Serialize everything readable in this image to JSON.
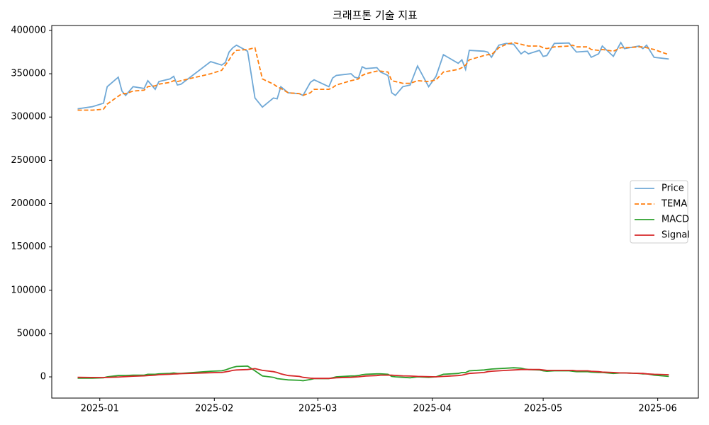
{
  "chart_data": {
    "type": "line",
    "title": "크래프톤 기술 지표",
    "x": [
      "2024-12-26",
      "2024-12-30",
      "2025-01-02",
      "2025-01-03",
      "2025-01-06",
      "2025-01-07",
      "2025-01-08",
      "2025-01-10",
      "2025-01-13",
      "2025-01-14",
      "2025-01-16",
      "2025-01-17",
      "2025-01-20",
      "2025-01-21",
      "2025-01-22",
      "2025-01-23",
      "2025-01-31",
      "2025-02-03",
      "2025-02-04",
      "2025-02-05",
      "2025-02-06",
      "2025-02-07",
      "2025-02-10",
      "2025-02-12",
      "2025-02-14",
      "2025-02-17",
      "2025-02-18",
      "2025-02-19",
      "2025-02-21",
      "2025-02-24",
      "2025-02-25",
      "2025-02-27",
      "2025-02-28",
      "2025-03-04",
      "2025-03-05",
      "2025-03-06",
      "2025-03-10",
      "2025-03-11",
      "2025-03-12",
      "2025-03-13",
      "2025-03-14",
      "2025-03-17",
      "2025-03-18",
      "2025-03-20",
      "2025-03-21",
      "2025-03-22",
      "2025-03-24",
      "2025-03-26",
      "2025-03-28",
      "2025-03-31",
      "2025-04-02",
      "2025-04-04",
      "2025-04-08",
      "2025-04-09",
      "2025-04-10",
      "2025-04-11",
      "2025-04-15",
      "2025-04-16",
      "2025-04-17",
      "2025-04-19",
      "2025-04-21",
      "2025-04-23",
      "2025-04-25",
      "2025-04-26",
      "2025-04-27",
      "2025-04-30",
      "2025-05-01",
      "2025-05-02",
      "2025-05-04",
      "2025-05-08",
      "2025-05-09",
      "2025-05-10",
      "2025-05-13",
      "2025-05-14",
      "2025-05-16",
      "2025-05-17",
      "2025-05-20",
      "2025-05-22",
      "2025-05-23",
      "2025-05-27",
      "2025-05-28",
      "2025-05-29",
      "2025-05-31",
      "2025-06-04"
    ],
    "series": [
      {
        "name": "Price",
        "color": "#6fa8d6",
        "dash": false,
        "values": [
          309500,
          312000,
          316000,
          335000,
          346000,
          330000,
          325000,
          335000,
          333000,
          342000,
          332000,
          341000,
          344000,
          347000,
          337000,
          338000,
          364000,
          360000,
          363000,
          375000,
          380000,
          383000,
          376000,
          322000,
          311500,
          322000,
          321000,
          335000,
          328000,
          327000,
          325000,
          340000,
          343000,
          335000,
          345000,
          348000,
          350000,
          346000,
          345000,
          358000,
          356000,
          357000,
          352000,
          348000,
          328000,
          325000,
          335000,
          337000,
          359000,
          335000,
          347000,
          372000,
          362000,
          366000,
          355000,
          377000,
          376000,
          375000,
          369000,
          383000,
          385000,
          384000,
          373000,
          376000,
          373000,
          377000,
          370000,
          371000,
          385000,
          385500,
          380000,
          375000,
          376000,
          369000,
          373000,
          382000,
          370000,
          386000,
          379000,
          382000,
          379000,
          383000,
          369000,
          367000
        ]
      },
      {
        "name": "TEMA",
        "color": "#ff7f0e",
        "dash": true,
        "values": [
          308000,
          308000,
          309000,
          315000,
          324000,
          327000,
          327000,
          330000,
          331000,
          335000,
          336000,
          338000,
          340000,
          342000,
          341000,
          342000,
          350000,
          354000,
          360000,
          366000,
          373000,
          377000,
          378000,
          380000,
          344000,
          338000,
          335000,
          333000,
          328000,
          327000,
          325000,
          328000,
          332000,
          332000,
          334000,
          337000,
          342000,
          343000,
          344000,
          348000,
          350000,
          353000,
          353000,
          352000,
          342000,
          341000,
          339000,
          339000,
          342000,
          341000,
          343000,
          352000,
          355000,
          357000,
          360000,
          366000,
          371000,
          372000,
          372000,
          380000,
          384000,
          386000,
          384000,
          383000,
          382000,
          382000,
          380000,
          379000,
          381000,
          382000,
          383000,
          381000,
          381000,
          378000,
          377000,
          378000,
          376000,
          380000,
          380000,
          381000,
          381000,
          380000,
          378000,
          372000
        ]
      },
      {
        "name": "MACD",
        "color": "#2ca02c",
        "dash": false,
        "values": [
          -1500,
          -1500,
          -1000,
          0,
          1500,
          1500,
          1500,
          2000,
          2000,
          3000,
          3000,
          3500,
          4000,
          4500,
          4000,
          4000,
          6500,
          7000,
          8000,
          9500,
          11000,
          12000,
          12500,
          7000,
          1000,
          -500,
          -2000,
          -2500,
          -3500,
          -4000,
          -4500,
          -3000,
          -2000,
          -2000,
          -1000,
          0,
          1000,
          1000,
          1500,
          2500,
          3000,
          3500,
          3500,
          3000,
          500,
          0,
          -500,
          -1000,
          0,
          -500,
          0,
          3000,
          4000,
          5000,
          5000,
          7000,
          8000,
          8500,
          9000,
          9500,
          10000,
          10500,
          10000,
          9000,
          8500,
          8000,
          7000,
          6500,
          7000,
          7000,
          6500,
          6000,
          6000,
          5500,
          5000,
          5000,
          4000,
          4500,
          4500,
          4000,
          3500,
          3500,
          2000,
          500
        ]
      },
      {
        "name": "Signal",
        "color": "#d62728",
        "dash": false,
        "values": [
          -500,
          -700,
          -800,
          -600,
          -200,
          0,
          300,
          800,
          1200,
          1500,
          2000,
          2500,
          3000,
          3300,
          3500,
          3700,
          4800,
          5000,
          5800,
          6500,
          7500,
          8000,
          8500,
          9500,
          7500,
          6000,
          5000,
          3500,
          1500,
          500,
          -500,
          -1500,
          -1800,
          -1800,
          -1500,
          -1000,
          -500,
          -200,
          0,
          500,
          1000,
          1500,
          2000,
          2000,
          2000,
          1700,
          1200,
          900,
          500,
          200,
          0,
          500,
          1500,
          2000,
          3000,
          4000,
          5000,
          6000,
          6500,
          7000,
          7500,
          8000,
          8500,
          8500,
          8500,
          8500,
          8000,
          7500,
          7500,
          7500,
          7500,
          7000,
          7000,
          6500,
          6000,
          5500,
          5000,
          4500,
          4500,
          4000,
          4000,
          3500,
          3000,
          2500
        ]
      }
    ],
    "ylim": [
      -24500,
      405700
    ],
    "yticks": [
      0,
      50000,
      100000,
      150000,
      200000,
      250000,
      300000,
      350000,
      400000
    ],
    "xlim": [
      "2024-12-19",
      "2025-06-12"
    ],
    "xticks": [
      {
        "value": "2025-01-01",
        "label": "2025-01"
      },
      {
        "value": "2025-02-01",
        "label": "2025-02"
      },
      {
        "value": "2025-03-01",
        "label": "2025-03"
      },
      {
        "value": "2025-04-01",
        "label": "2025-04"
      },
      {
        "value": "2025-05-01",
        "label": "2025-05"
      },
      {
        "value": "2025-06-01",
        "label": "2025-06"
      }
    ],
    "grid": false,
    "legend": "right"
  }
}
